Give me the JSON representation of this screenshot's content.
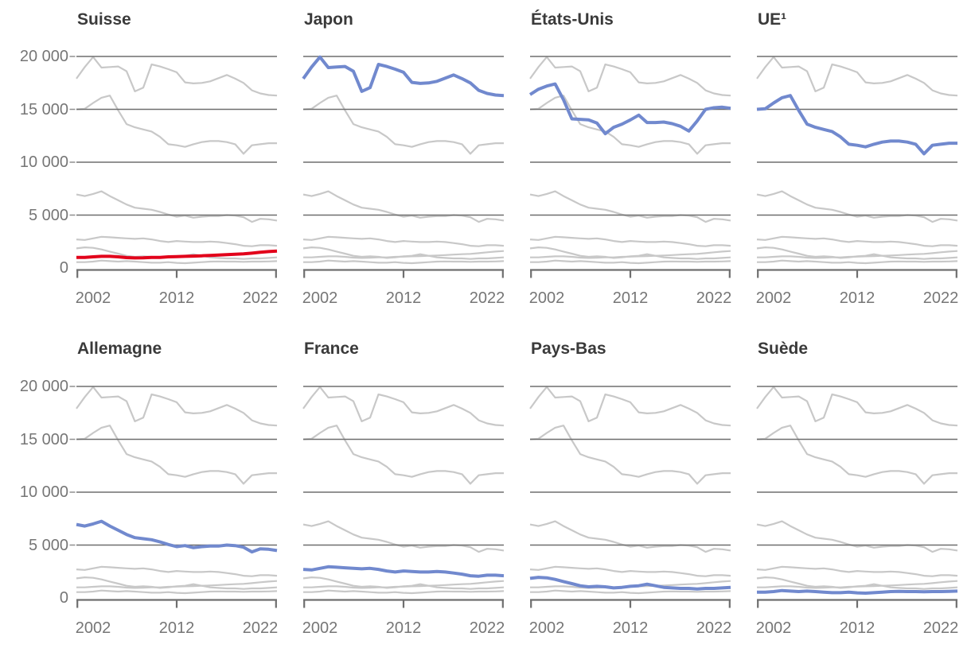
{
  "chart_data": {
    "type": "line",
    "layout": "small-multiples 2 rows x 4 columns, shared axes, no legend",
    "grid": true,
    "legend": false,
    "x": {
      "years": [
        2000,
        2001,
        2002,
        2003,
        2004,
        2005,
        2006,
        2007,
        2008,
        2009,
        2010,
        2011,
        2012,
        2013,
        2014,
        2015,
        2016,
        2017,
        2018,
        2019,
        2020,
        2021,
        2022,
        2023,
        2024
      ],
      "range": [
        2000,
        2024
      ],
      "tick_years": [
        2002,
        2012,
        2022
      ],
      "tick_labels": [
        "2002",
        "2012",
        "2022"
      ],
      "axis_tick_positions": [
        2000,
        2012,
        2024
      ]
    },
    "y": {
      "range": [
        0,
        20000
      ],
      "tick_values": [
        20000,
        15000,
        10000,
        5000,
        0
      ],
      "tick_labels": [
        "20 000",
        "15 000",
        "10 000",
        "5 000",
        "0"
      ],
      "gridline_values": [
        5000,
        10000,
        15000,
        20000
      ]
    },
    "series": {
      "japon": [
        17900,
        19000,
        19950,
        18950,
        19000,
        19050,
        18600,
        16700,
        17050,
        19250,
        19050,
        18800,
        18500,
        17550,
        17450,
        17500,
        17650,
        17950,
        18250,
        17900,
        17500,
        16800,
        16500,
        16350,
        16300
      ],
      "etats_unis": [
        16400,
        16900,
        17200,
        17400,
        15900,
        14100,
        14050,
        14000,
        13700,
        12700,
        13300,
        13600,
        14000,
        14450,
        13750,
        13750,
        13800,
        13650,
        13400,
        12950,
        13900,
        15000,
        15150,
        15200,
        15100
      ],
      "ue": [
        15000,
        15050,
        15600,
        16100,
        16300,
        14900,
        13600,
        13300,
        13100,
        12900,
        12400,
        11700,
        11600,
        11450,
        11700,
        11900,
        12000,
        12000,
        11900,
        11700,
        10800,
        11600,
        11700,
        11800,
        11800
      ],
      "allemagne": [
        6950,
        6800,
        7000,
        7250,
        6800,
        6400,
        6000,
        5700,
        5600,
        5500,
        5300,
        5050,
        4850,
        4950,
        4750,
        4850,
        4900,
        4900,
        5000,
        4950,
        4800,
        4350,
        4650,
        4600,
        4480
      ],
      "france": [
        2700,
        2650,
        2800,
        2950,
        2900,
        2850,
        2800,
        2750,
        2800,
        2700,
        2550,
        2450,
        2550,
        2500,
        2450,
        2450,
        2500,
        2450,
        2350,
        2250,
        2100,
        2050,
        2150,
        2150,
        2100
      ],
      "pays_bas": [
        1850,
        1950,
        1900,
        1750,
        1550,
        1350,
        1150,
        1050,
        1100,
        1050,
        950,
        1000,
        1100,
        1150,
        1300,
        1150,
        1000,
        950,
        900,
        900,
        850,
        900,
        900,
        950,
        1000
      ],
      "suede": [
        550,
        550,
        600,
        700,
        650,
        600,
        650,
        600,
        550,
        500,
        500,
        550,
        480,
        450,
        500,
        550,
        600,
        620,
        600,
        600,
        580,
        600,
        600,
        620,
        650
      ],
      "suisse": [
        1000,
        1000,
        1050,
        1100,
        1100,
        1050,
        980,
        950,
        960,
        1000,
        1000,
        1050,
        1070,
        1100,
        1120,
        1150,
        1180,
        1220,
        1260,
        1300,
        1330,
        1400,
        1480,
        1550,
        1600
      ]
    },
    "panels": [
      {
        "title": "Suisse",
        "highlight": "suisse",
        "color": "#e2001a",
        "background": [
          "japon",
          "ue",
          "allemagne",
          "france",
          "pays_bas",
          "suede"
        ]
      },
      {
        "title": "Japon",
        "highlight": "japon",
        "color": "#7189ce",
        "background": [
          "ue",
          "allemagne",
          "france",
          "pays_bas",
          "suede",
          "suisse"
        ]
      },
      {
        "title": "États-Unis",
        "highlight": "etats_unis",
        "color": "#7189ce",
        "background": [
          "japon",
          "ue",
          "allemagne",
          "france",
          "pays_bas",
          "suede",
          "suisse"
        ]
      },
      {
        "title": "UE¹",
        "highlight": "ue",
        "color": "#7189ce",
        "background": [
          "japon",
          "allemagne",
          "france",
          "pays_bas",
          "suede",
          "suisse"
        ]
      },
      {
        "title": "Allemagne",
        "highlight": "allemagne",
        "color": "#7189ce",
        "background": [
          "japon",
          "ue",
          "france",
          "pays_bas",
          "suede",
          "suisse"
        ]
      },
      {
        "title": "France",
        "highlight": "france",
        "color": "#7189ce",
        "background": [
          "japon",
          "ue",
          "allemagne",
          "pays_bas",
          "suede",
          "suisse"
        ]
      },
      {
        "title": "Pays-Bas",
        "highlight": "pays_bas",
        "color": "#7189ce",
        "background": [
          "japon",
          "ue",
          "allemagne",
          "france",
          "suede",
          "suisse"
        ]
      },
      {
        "title": "Suède",
        "highlight": "suede",
        "color": "#7189ce",
        "background": [
          "japon",
          "ue",
          "allemagne",
          "france",
          "pays_bas",
          "suisse"
        ]
      }
    ],
    "colors": {
      "highlight_red": "#e2001a",
      "highlight_blue": "#7189ce",
      "background_line": "#c8c8c8",
      "gridline": "#6e6e6e",
      "axis": "#6f6f6f",
      "y_tick_dash": "#8f8f8f",
      "tick_label": "#767676",
      "title": "#3a3a3a",
      "background": "#ffffff"
    }
  }
}
